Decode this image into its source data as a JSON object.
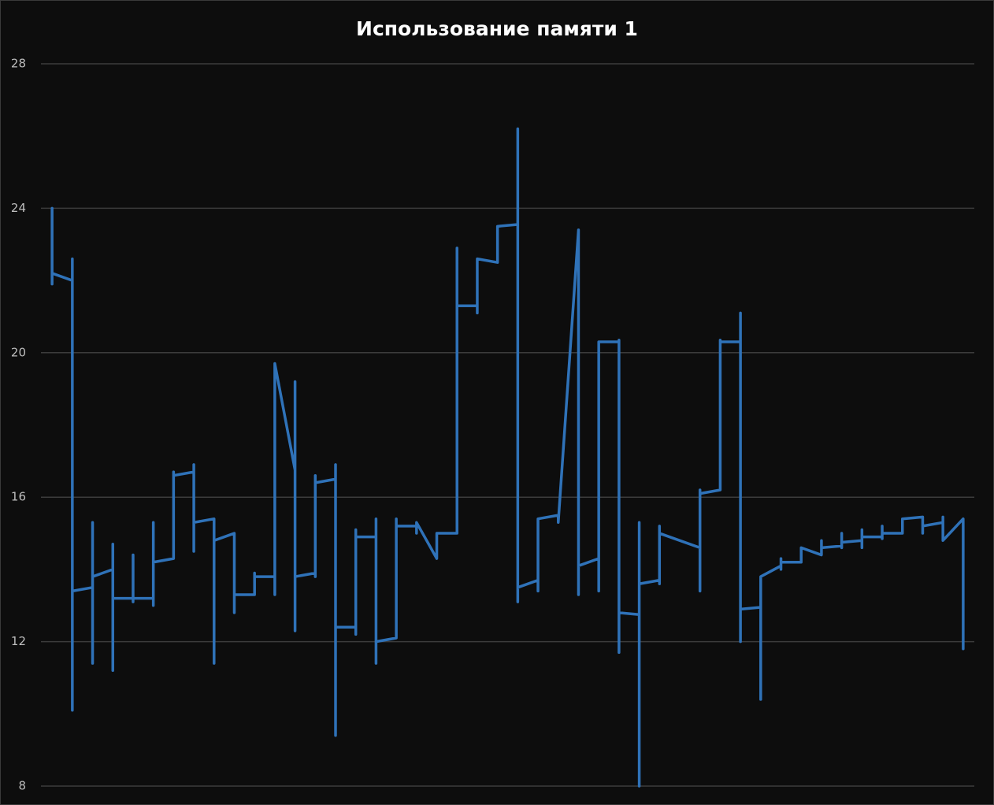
{
  "chart_data": {
    "type": "line",
    "title": "Использование памяти 1",
    "x": [
      0,
      0,
      0,
      1,
      1,
      1,
      1,
      2,
      2,
      2,
      2,
      3,
      3,
      3,
      3,
      4,
      4,
      4,
      4,
      5,
      5,
      5,
      5,
      6,
      6,
      6,
      7,
      7,
      7,
      7,
      8,
      8,
      8,
      9,
      9,
      9,
      10,
      10,
      10,
      11,
      11,
      11,
      12,
      12,
      12,
      12,
      13,
      13,
      13,
      13,
      14,
      14,
      14,
      14,
      15,
      15,
      15,
      15,
      16,
      16,
      16,
      16,
      17,
      17,
      17,
      18,
      18,
      18,
      19,
      19,
      20,
      20,
      20,
      21,
      21,
      21,
      22,
      22,
      23,
      23,
      23,
      23,
      24,
      24,
      24,
      25,
      25,
      26,
      26,
      26,
      27,
      27,
      27,
      28,
      28,
      28,
      28,
      29,
      29,
      29,
      29,
      30,
      30,
      30,
      30,
      32,
      32,
      32,
      32,
      33,
      33,
      33,
      34,
      34,
      34,
      34,
      35,
      35,
      35,
      36,
      36,
      36,
      36,
      37,
      37,
      38,
      38,
      38,
      39,
      39,
      39,
      39,
      40,
      40,
      40,
      40,
      41,
      41,
      41,
      41,
      42,
      42,
      43,
      43,
      43,
      44,
      44,
      44,
      45,
      45
    ],
    "series": [
      {
        "color": "#2f72b8",
        "values": [
          24,
          21.9,
          22.2,
          22.0,
          22.6,
          10.1,
          13.4,
          13.5,
          15.3,
          11.4,
          13.8,
          14.0,
          14.7,
          11.2,
          13.2,
          13.2,
          14.4,
          13.1,
          13.2,
          13.2,
          15.3,
          13.0,
          14.2,
          14.3,
          16.7,
          16.6,
          16.7,
          16.9,
          14.5,
          15.3,
          15.4,
          11.4,
          14.8,
          15.0,
          12.8,
          13.3,
          13.3,
          13.9,
          13.8,
          13.8,
          13.3,
          19.7,
          16.75,
          19.2,
          12.3,
          13.8,
          13.9,
          16.6,
          13.8,
          16.4,
          16.5,
          16.9,
          9.4,
          12.4,
          12.4,
          12.2,
          15.1,
          14.9,
          14.9,
          15.4,
          11.4,
          12.0,
          12.1,
          15.4,
          15.2,
          15.2,
          15.0,
          15.3,
          14.3,
          15.0,
          15.0,
          22.9,
          21.3,
          21.3,
          21.1,
          22.6,
          22.5,
          23.5,
          23.55,
          26.2,
          13.1,
          13.5,
          13.7,
          13.4,
          15.4,
          15.5,
          15.3,
          23.4,
          13.3,
          14.1,
          14.3,
          13.4,
          20.3,
          20.3,
          20.35,
          11.7,
          12.8,
          12.75,
          15.3,
          8,
          13.6,
          13.7,
          13.6,
          15.2,
          15.0,
          14.6,
          13.4,
          16.2,
          16.1,
          16.2,
          20.35,
          20.3,
          20.3,
          21.1,
          12.0,
          12.9,
          12.95,
          10.4,
          13.8,
          14.1,
          14.3,
          14.0,
          14.2,
          14.2,
          14.6,
          14.4,
          14.8,
          14.6,
          14.65,
          15.0,
          14.6,
          14.75,
          14.8,
          15.1,
          14.6,
          14.9,
          14.9,
          15.2,
          14.85,
          15.0,
          15.0,
          15.4,
          15.45,
          15.0,
          15.2,
          15.3,
          15.45,
          14.8,
          15.4,
          11.8
        ]
      }
    ],
    "xlim": [
      -0.55,
      45.55
    ],
    "ylim": [
      8,
      28
    ],
    "yticks": [
      8,
      12,
      16,
      20,
      24,
      28
    ],
    "grid": true
  }
}
